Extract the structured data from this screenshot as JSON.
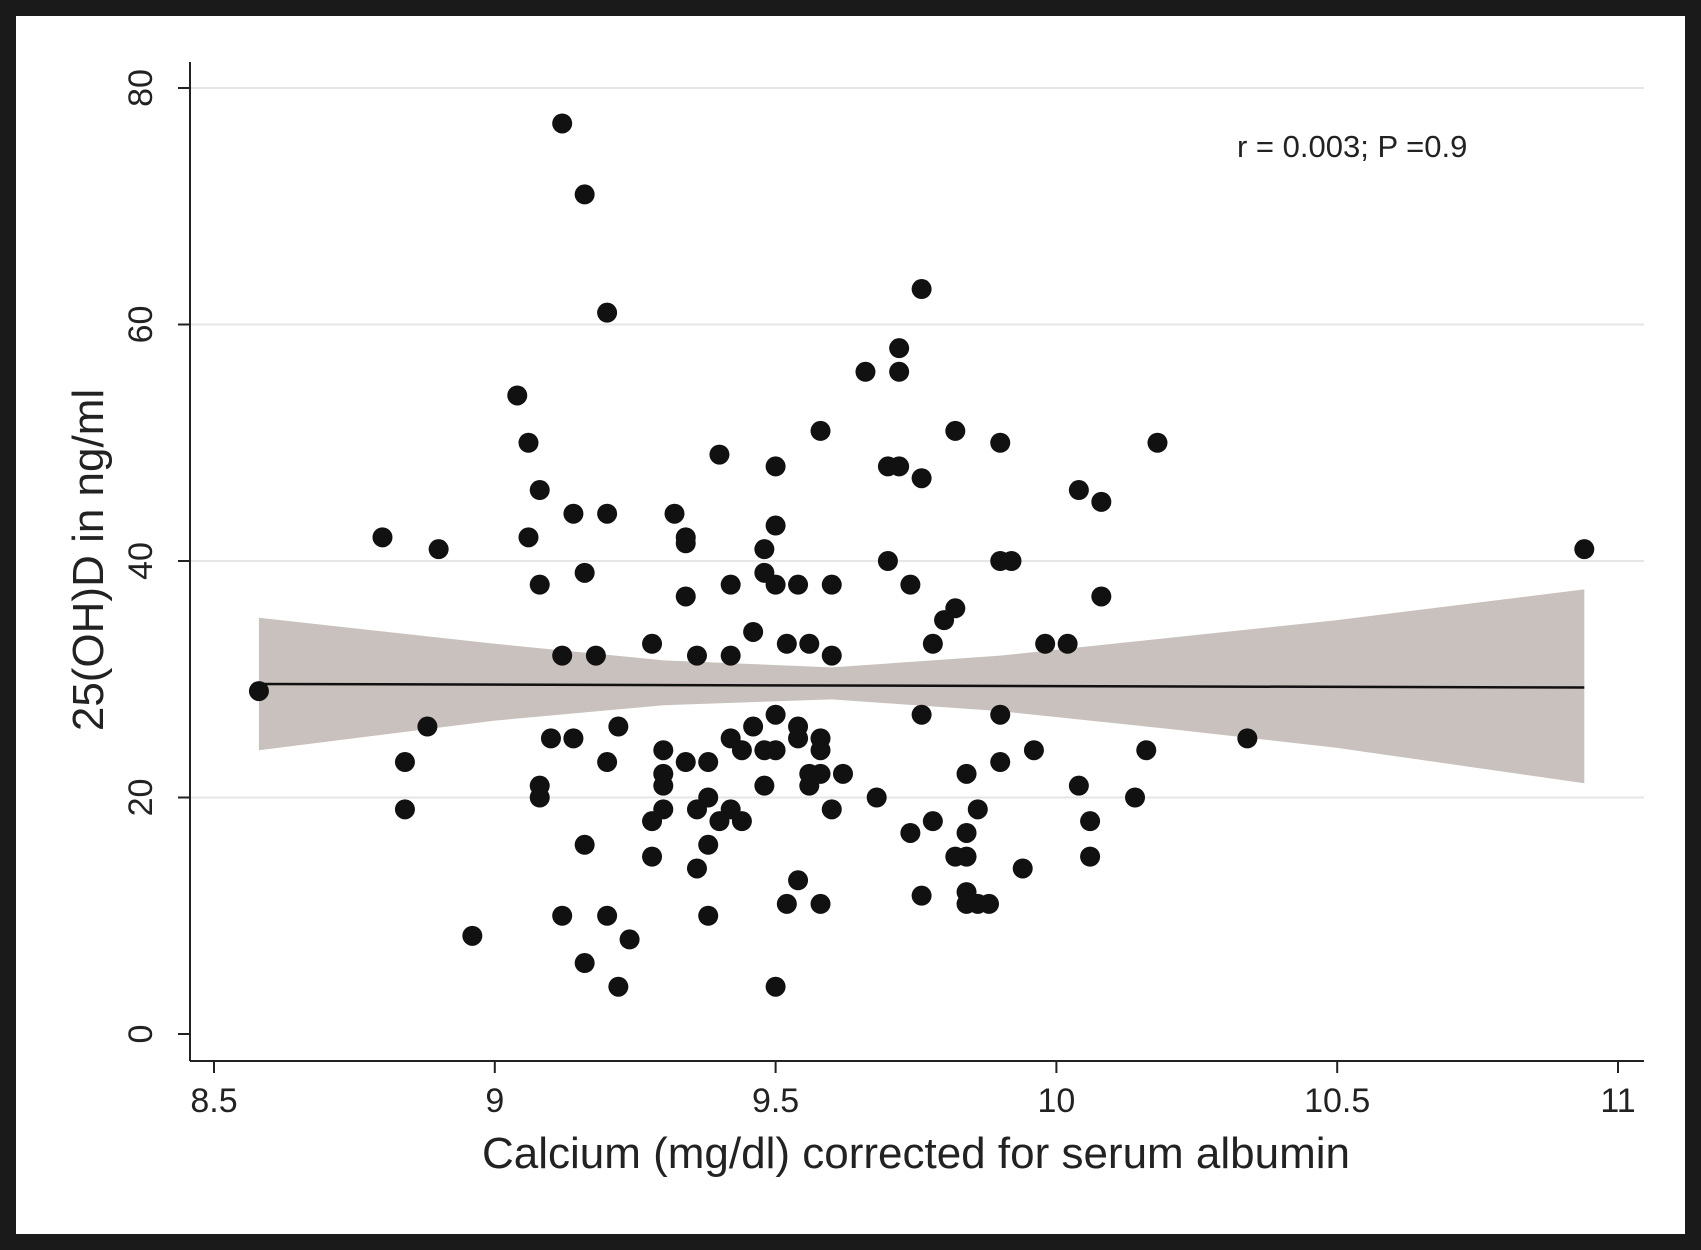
{
  "chart_data": {
    "type": "scatter",
    "title": "",
    "xlabel": "Calcium (mg/dl) corrected for serum albumin",
    "ylabel": "25(OH)D in ng/ml",
    "xlim": [
      8.5,
      11.05
    ],
    "ylim": [
      0,
      80
    ],
    "xticks": [
      "8.5",
      "9",
      "9.5",
      "10",
      "10.5",
      "11"
    ],
    "yticks": [
      "0",
      "20",
      "40",
      "60",
      "80"
    ],
    "grid": "horizontal",
    "annotation": "r = 0.003; P =0.9",
    "colors": {
      "points": "#111111",
      "fit_line": "#111111",
      "ci_band": "#c9c1bd",
      "grid": "#e6e6e6"
    },
    "points": [
      [
        8.58,
        29
      ],
      [
        8.8,
        42
      ],
      [
        8.84,
        23
      ],
      [
        8.84,
        19
      ],
      [
        8.88,
        26
      ],
      [
        8.9,
        41
      ],
      [
        8.96,
        8.3
      ],
      [
        9.04,
        54
      ],
      [
        9.06,
        50
      ],
      [
        9.06,
        42
      ],
      [
        9.08,
        46
      ],
      [
        9.08,
        38
      ],
      [
        9.08,
        21
      ],
      [
        9.08,
        20
      ],
      [
        9.1,
        25
      ],
      [
        9.12,
        77
      ],
      [
        9.12,
        32
      ],
      [
        9.12,
        10
      ],
      [
        9.14,
        44
      ],
      [
        9.14,
        25
      ],
      [
        9.16,
        71
      ],
      [
        9.16,
        39
      ],
      [
        9.16,
        16
      ],
      [
        9.16,
        6
      ],
      [
        9.18,
        32
      ],
      [
        9.2,
        61
      ],
      [
        9.2,
        44
      ],
      [
        9.2,
        23
      ],
      [
        9.2,
        10
      ],
      [
        9.22,
        26
      ],
      [
        9.22,
        4
      ],
      [
        9.24,
        8
      ],
      [
        9.28,
        33
      ],
      [
        9.28,
        18
      ],
      [
        9.28,
        15
      ],
      [
        9.3,
        24
      ],
      [
        9.3,
        22
      ],
      [
        9.3,
        21
      ],
      [
        9.3,
        19
      ],
      [
        9.32,
        44
      ],
      [
        9.34,
        42
      ],
      [
        9.34,
        41.5
      ],
      [
        9.34,
        37
      ],
      [
        9.34,
        23
      ],
      [
        9.36,
        32
      ],
      [
        9.36,
        19
      ],
      [
        9.36,
        14
      ],
      [
        9.38,
        20
      ],
      [
        9.38,
        23
      ],
      [
        9.38,
        16
      ],
      [
        9.38,
        10
      ],
      [
        9.4,
        49
      ],
      [
        9.4,
        18
      ],
      [
        9.42,
        38
      ],
      [
        9.42,
        32
      ],
      [
        9.42,
        25
      ],
      [
        9.42,
        19
      ],
      [
        9.44,
        24
      ],
      [
        9.44,
        18
      ],
      [
        9.46,
        34
      ],
      [
        9.46,
        26
      ],
      [
        9.48,
        41
      ],
      [
        9.48,
        39
      ],
      [
        9.48,
        24
      ],
      [
        9.48,
        21
      ],
      [
        9.5,
        48
      ],
      [
        9.5,
        43
      ],
      [
        9.5,
        38
      ],
      [
        9.5,
        27
      ],
      [
        9.5,
        24
      ],
      [
        9.5,
        4
      ],
      [
        9.52,
        33
      ],
      [
        9.52,
        11
      ],
      [
        9.54,
        38
      ],
      [
        9.54,
        26
      ],
      [
        9.54,
        25
      ],
      [
        9.54,
        13
      ],
      [
        9.56,
        33
      ],
      [
        9.56,
        22
      ],
      [
        9.56,
        21
      ],
      [
        9.58,
        51
      ],
      [
        9.58,
        25
      ],
      [
        9.58,
        24
      ],
      [
        9.58,
        22
      ],
      [
        9.58,
        11
      ],
      [
        9.6,
        38
      ],
      [
        9.6,
        32
      ],
      [
        9.6,
        19
      ],
      [
        9.62,
        22
      ],
      [
        9.66,
        56
      ],
      [
        9.68,
        20
      ],
      [
        9.7,
        48
      ],
      [
        9.7,
        40
      ],
      [
        9.72,
        58
      ],
      [
        9.72,
        56
      ],
      [
        9.72,
        48
      ],
      [
        9.74,
        38
      ],
      [
        9.74,
        17
      ],
      [
        9.76,
        63
      ],
      [
        9.76,
        47
      ],
      [
        9.76,
        27
      ],
      [
        9.76,
        11.7
      ],
      [
        9.78,
        33
      ],
      [
        9.78,
        18
      ],
      [
        9.8,
        35
      ],
      [
        9.82,
        51
      ],
      [
        9.82,
        36
      ],
      [
        9.82,
        15
      ],
      [
        9.84,
        22
      ],
      [
        9.84,
        17
      ],
      [
        9.84,
        15
      ],
      [
        9.84,
        12
      ],
      [
        9.84,
        11
      ],
      [
        9.86,
        19
      ],
      [
        9.86,
        11
      ],
      [
        9.88,
        11
      ],
      [
        9.9,
        50
      ],
      [
        9.9,
        40
      ],
      [
        9.9,
        27
      ],
      [
        9.9,
        23
      ],
      [
        9.92,
        40
      ],
      [
        9.94,
        14
      ],
      [
        9.96,
        24
      ],
      [
        9.98,
        33
      ],
      [
        10.02,
        33
      ],
      [
        10.04,
        46
      ],
      [
        10.04,
        21
      ],
      [
        10.06,
        18
      ],
      [
        10.06,
        15
      ],
      [
        10.08,
        45
      ],
      [
        10.08,
        37
      ],
      [
        10.14,
        20
      ],
      [
        10.16,
        24
      ],
      [
        10.18,
        50
      ],
      [
        10.34,
        25
      ],
      [
        10.94,
        41
      ]
    ],
    "fit": {
      "x": [
        8.58,
        10.94
      ],
      "y": [
        29.6,
        29.3
      ]
    },
    "ci": {
      "x": [
        8.58,
        9.0,
        9.3,
        9.6,
        9.9,
        10.2,
        10.5,
        10.94
      ],
      "lower": [
        24.0,
        26.5,
        27.8,
        28.3,
        27.3,
        25.8,
        24.2,
        21.2
      ],
      "upper": [
        35.2,
        33.0,
        31.6,
        31.0,
        32.0,
        33.5,
        35.0,
        37.6
      ]
    }
  }
}
